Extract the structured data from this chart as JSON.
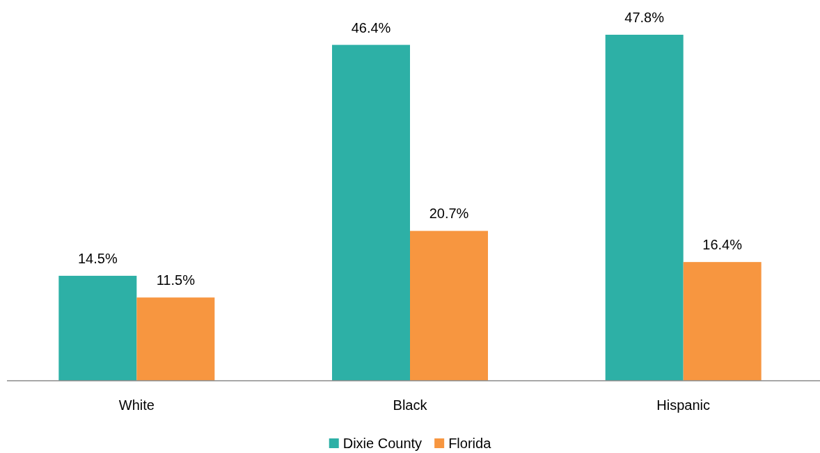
{
  "chart_data": {
    "type": "bar",
    "categories": [
      "White",
      "Black",
      "Hispanic"
    ],
    "series": [
      {
        "name": "Dixie County",
        "color": "#2db0a6",
        "values": [
          14.5,
          46.4,
          47.8
        ],
        "value_labels": [
          "14.5%",
          "46.4%",
          "47.8%"
        ]
      },
      {
        "name": "Florida",
        "color": "#f79640",
        "values": [
          11.5,
          20.7,
          16.4
        ],
        "value_labels": [
          "11.5%",
          "20.7%",
          "16.4%"
        ]
      }
    ],
    "legend": "bottom"
  }
}
